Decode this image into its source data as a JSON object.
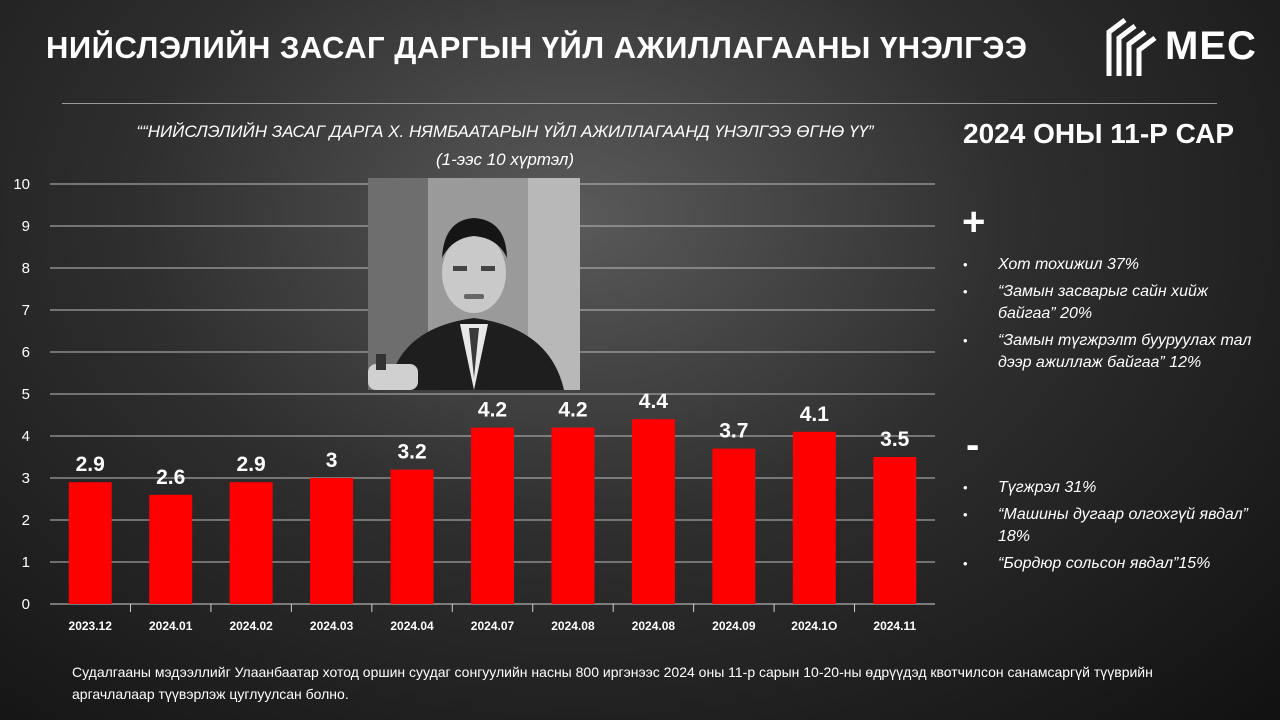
{
  "header": {
    "title": "НИЙСЛЭЛИЙН ЗАСАГ ДАРГЫН ҮЙЛ АЖИЛЛАГААНЫ ҮНЭЛГЭЭ",
    "logo_text": "MEC"
  },
  "chart_title": {
    "line1": "““НИЙСЛЭЛИЙН ЗАСАГ ДАРГА Х. НЯМБААТАРЫН ҮЙЛ АЖИЛЛАГААНД ҮНЭЛГЭЭ ӨГНӨ ҮҮ”",
    "line2": "(1-ээс 10 хүртэл)"
  },
  "chart_data": {
    "type": "bar",
    "categories": [
      "2023.12",
      "2024.01",
      "2024.02",
      "2024.03",
      "2024.04",
      "2024.07",
      "2024.08",
      "2024.08",
      "2024.09",
      "2024.1O",
      "2024.11"
    ],
    "values": [
      2.9,
      2.6,
      2.9,
      3,
      3.2,
      4.2,
      4.2,
      4.4,
      3.7,
      4.1,
      3.5
    ],
    "data_labels": [
      "2.9",
      "2.6",
      "2.9",
      "3",
      "3.2",
      "4.2",
      "4.2",
      "4.4",
      "3.7",
      "4.1",
      "3.5"
    ],
    "yticks": [
      "0",
      "1",
      "2",
      "3",
      "4",
      "5",
      "6",
      "7",
      "8",
      "9",
      "10"
    ],
    "ylim": [
      0,
      10
    ],
    "bar_color": "#ff0000",
    "grid": true
  },
  "summary": {
    "month_title": "2024 ОНЫ 11-Р САР",
    "plus_sign": "+",
    "minus_sign": "-",
    "positives": [
      "Хот тохижил 37%",
      "“Замын засварыг сайн хийж байгаа” 20%",
      "“Замын түгжрэлт бууруулах тал дээр ажиллаж байгаа” 12%"
    ],
    "negatives": [
      "Түгжрэл    31%",
      "“Машины дугаар олгохгүй явдал” 18%",
      "“Бордюр сольсон явдал”15%"
    ]
  },
  "footer": {
    "note": "Судалгааны мэдээллийг Улаанбаатар хотод оршин суудаг сонгуулийн насны 800 иргэнээс 2024 оны 11-р сарын 10-20-ны өдрүүдэд квотчилсон санамсаргүй түүврийн аргачлалаар түүвэрлэж цуглуулсан болно."
  }
}
